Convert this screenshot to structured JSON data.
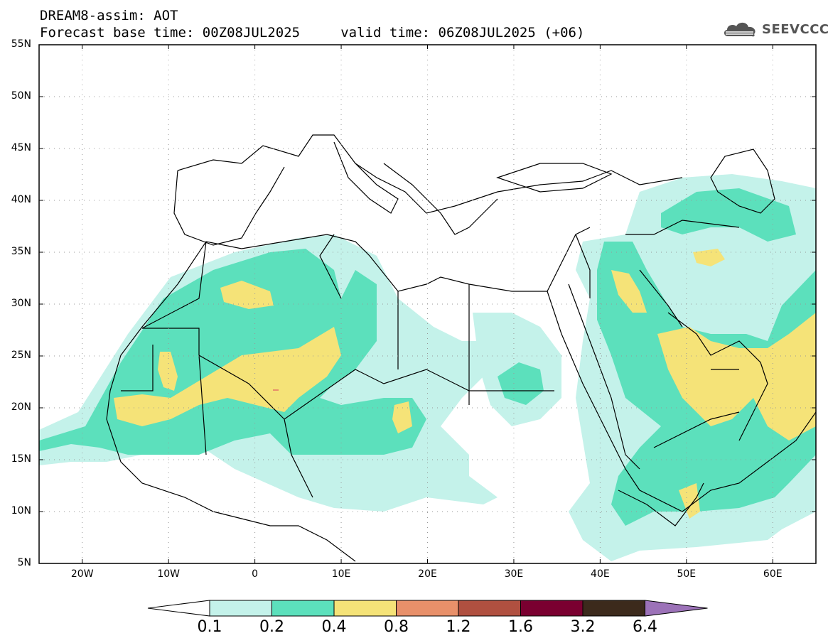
{
  "header": {
    "line1": "DREAM8-assim: AOT",
    "line2": "Forecast base time: 00Z08JUL2025     valid time: 06Z08JUL2025 (+06)"
  },
  "logo": {
    "text": "SEEVCCC",
    "icon": "cloud-icon"
  },
  "map": {
    "lat_labels": [
      "55N",
      "50N",
      "45N",
      "40N",
      "35N",
      "30N",
      "25N",
      "20N",
      "15N",
      "10N",
      "5N"
    ],
    "lon_labels": [
      "20W",
      "10W",
      "0",
      "10E",
      "20E",
      "30E",
      "40E",
      "50E",
      "60E"
    ],
    "lat_range": [
      5,
      55
    ],
    "lon_range": [
      -25,
      65
    ]
  },
  "colorbar": {
    "labels": [
      "0.1",
      "0.2",
      "0.4",
      "0.8",
      "1.2",
      "1.6",
      "3.2",
      "6.4"
    ],
    "colors": [
      "#ffffff",
      "#c4f2ea",
      "#5ce0bc",
      "#f5e378",
      "#e8906a",
      "#b05040",
      "#7a0030",
      "#3c2a1c",
      "#9c72b8"
    ]
  },
  "palette": {
    "level1": "#c4f2ea",
    "level2": "#5ce0bc",
    "level3": "#f5e378",
    "level4": "#e8906a"
  }
}
